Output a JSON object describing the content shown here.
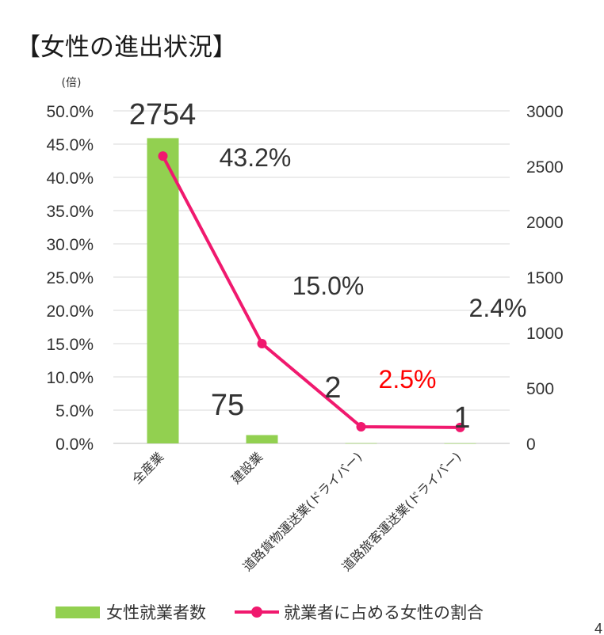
{
  "title": "【女性の進出状況】",
  "colors": {
    "bar": "#92d050",
    "line": "#f0196e",
    "highlight": "#ff0000",
    "grid": "#d9d9d9",
    "text": "#333333"
  },
  "legend": {
    "bar_label": "女性就業者数",
    "line_label": "就業者に占める女性の割合"
  },
  "chart_data": {
    "type": "bar",
    "categories": [
      "全産業",
      "建設業",
      "道路貨物運送業(ドライバー)",
      "道路旅客運送業(ドライバー)"
    ],
    "series": [
      {
        "name": "女性就業者数",
        "type": "bar",
        "axis": "right",
        "values": [
          2754,
          75,
          2,
          1
        ]
      },
      {
        "name": "就業者に占める女性の割合",
        "type": "line",
        "axis": "left",
        "values": [
          43.2,
          15.0,
          2.5,
          2.4
        ]
      }
    ],
    "left_axis": {
      "unit_label": "(倍)",
      "ylim": [
        0,
        50
      ],
      "ticks": [
        0,
        5,
        10,
        15,
        20,
        25,
        30,
        35,
        40,
        45,
        50
      ],
      "tick_labels": [
        "0.0%",
        "5.0%",
        "10.0%",
        "15.0%",
        "20.0%",
        "25.0%",
        "30.0%",
        "35.0%",
        "40.0%",
        "45.0%",
        "50.0%"
      ]
    },
    "right_axis": {
      "ylim": [
        0,
        3000
      ],
      "ticks": [
        0,
        500,
        1000,
        1500,
        2000,
        2500,
        3000
      ],
      "tick_labels": [
        "0",
        "500",
        "1000",
        "1500",
        "2000",
        "2500",
        "3000"
      ]
    },
    "bar_data_labels": [
      "2754",
      "75",
      "2",
      "1"
    ],
    "line_data_labels": [
      "43.2%",
      "15.0%",
      "2.5%",
      "2.4%"
    ],
    "highlighted_label_index": 2,
    "grid": true,
    "legend_position": "bottom"
  },
  "page_number": "4"
}
